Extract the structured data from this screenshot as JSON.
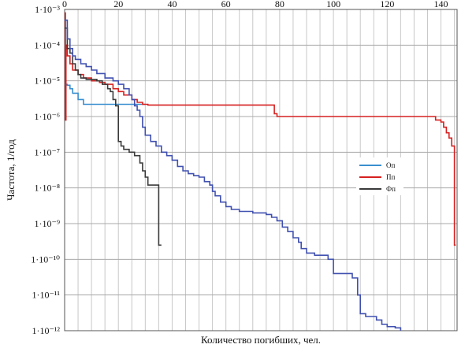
{
  "chart_data": {
    "type": "line",
    "xlabel": "Количество погибших, чел.",
    "ylabel": "Частота, 1/год",
    "xlim": [
      0,
      146
    ],
    "ylim_exp": [
      -12,
      -3
    ],
    "y_scale": "log",
    "x_ticks": [
      0,
      20,
      40,
      60,
      80,
      100,
      120,
      140
    ],
    "y_ticks": [
      "1·10⁻³",
      "1·10⁻⁴",
      "1·10⁻⁵",
      "1·10⁻⁶",
      "1·10⁻⁷",
      "1·10⁻⁸",
      "1·10⁻⁹",
      "1·10⁻¹⁰",
      "1·10⁻¹¹",
      "1·10⁻¹²"
    ],
    "grid": true,
    "legend_position": "right",
    "series": [
      {
        "name": "Оп",
        "color": "#3a8fd0",
        "points": [
          [
            0,
            8e-06
          ],
          [
            1,
            7.5e-06
          ],
          [
            2,
            6e-06
          ],
          [
            3,
            4.5e-06
          ],
          [
            5,
            3e-06
          ],
          [
            7,
            2.2e-06
          ],
          [
            10,
            2.2e-06
          ],
          [
            14,
            2.2e-06
          ],
          [
            18,
            2.2e-06
          ],
          [
            20,
            2.2e-06
          ],
          [
            24,
            2.2e-06
          ],
          [
            28,
            2.2e-06
          ],
          [
            30,
            2.2e-06
          ]
        ]
      },
      {
        "name": "Пп",
        "color": "#d62020",
        "points": [
          [
            0,
            0.0008
          ],
          [
            0.3,
            8e-07
          ],
          [
            0.5,
            0.0001
          ],
          [
            1,
            5e-05
          ],
          [
            2,
            3e-05
          ],
          [
            3,
            2e-05
          ],
          [
            5,
            1.5e-05
          ],
          [
            7,
            1.2e-05
          ],
          [
            10,
            1e-05
          ],
          [
            13,
            9e-06
          ],
          [
            15,
            8e-06
          ],
          [
            18,
            6e-06
          ],
          [
            20,
            5e-06
          ],
          [
            22,
            4e-06
          ],
          [
            25,
            3e-06
          ],
          [
            27,
            2.5e-06
          ],
          [
            29,
            2.2e-06
          ],
          [
            31,
            2.1e-06
          ],
          [
            40,
            2.1e-06
          ],
          [
            60,
            2.1e-06
          ],
          [
            77,
            2.1e-06
          ],
          [
            78,
            1.2e-06
          ],
          [
            79,
            1e-06
          ],
          [
            100,
            1e-06
          ],
          [
            120,
            1e-06
          ],
          [
            137,
            1e-06
          ],
          [
            138,
            8e-07
          ],
          [
            140,
            7e-07
          ],
          [
            141,
            5e-07
          ],
          [
            142,
            3.5e-07
          ],
          [
            143,
            2.5e-07
          ],
          [
            144,
            1.5e-07
          ],
          [
            145,
            2.5e-10
          ],
          [
            145.5,
            2.5e-10
          ]
        ]
      },
      {
        "name": "Фп",
        "color": "#3a3a3a",
        "points": [
          [
            0,
            0.0003
          ],
          [
            1,
            8e-05
          ],
          [
            2,
            6e-05
          ],
          [
            3,
            3e-05
          ],
          [
            4,
            2e-05
          ],
          [
            5,
            1.5e-05
          ],
          [
            6,
            1.2e-05
          ],
          [
            8,
            1.1e-05
          ],
          [
            10,
            1.1e-05
          ],
          [
            12,
            1e-05
          ],
          [
            14,
            8e-06
          ],
          [
            16,
            6e-06
          ],
          [
            17,
            5e-06
          ],
          [
            18,
            3e-06
          ],
          [
            19,
            2e-06
          ],
          [
            20,
            2e-07
          ],
          [
            21,
            1.5e-07
          ],
          [
            22,
            1.2e-07
          ],
          [
            24,
            1e-07
          ],
          [
            26,
            8e-08
          ],
          [
            28,
            5e-08
          ],
          [
            29,
            3e-08
          ],
          [
            30,
            2e-08
          ],
          [
            31,
            1.2e-08
          ],
          [
            34,
            1.2e-08
          ],
          [
            35,
            2.5e-10
          ],
          [
            36,
            2.5e-10
          ]
        ]
      },
      {
        "name": "",
        "color": "#4050b0",
        "points": [
          [
            0,
            0.0005
          ],
          [
            1,
            0.00015
          ],
          [
            2,
            8e-05
          ],
          [
            3,
            5e-05
          ],
          [
            4,
            4e-05
          ],
          [
            6,
            3e-05
          ],
          [
            8,
            2.5e-05
          ],
          [
            10,
            2e-05
          ],
          [
            12,
            1.6e-05
          ],
          [
            15,
            1.2e-05
          ],
          [
            18,
            1e-05
          ],
          [
            20,
            8e-06
          ],
          [
            22,
            6e-06
          ],
          [
            24,
            4e-06
          ],
          [
            25,
            3e-06
          ],
          [
            26,
            2e-06
          ],
          [
            27,
            1.5e-06
          ],
          [
            28,
            1e-06
          ],
          [
            29,
            5e-07
          ],
          [
            30,
            3e-07
          ],
          [
            32,
            2e-07
          ],
          [
            34,
            1.5e-07
          ],
          [
            36,
            1e-07
          ],
          [
            38,
            8e-08
          ],
          [
            40,
            6e-08
          ],
          [
            42,
            4e-08
          ],
          [
            44,
            3e-08
          ],
          [
            46,
            2.5e-08
          ],
          [
            48,
            2.2e-08
          ],
          [
            50,
            2e-08
          ],
          [
            52,
            1.5e-08
          ],
          [
            54,
            1.2e-08
          ],
          [
            55,
            8e-09
          ],
          [
            56,
            6e-09
          ],
          [
            58,
            4e-09
          ],
          [
            60,
            3e-09
          ],
          [
            62,
            2.5e-09
          ],
          [
            65,
            2.2e-09
          ],
          [
            70,
            2e-09
          ],
          [
            75,
            1.8e-09
          ],
          [
            77,
            1.5e-09
          ],
          [
            79,
            1.2e-09
          ],
          [
            81,
            8e-10
          ],
          [
            83,
            6e-10
          ],
          [
            85,
            4e-10
          ],
          [
            87,
            3e-10
          ],
          [
            88,
            2e-10
          ],
          [
            90,
            1.5e-10
          ],
          [
            93,
            1.3e-10
          ],
          [
            96,
            1.3e-10
          ],
          [
            98,
            1e-10
          ],
          [
            100,
            4e-11
          ],
          [
            102,
            4e-11
          ],
          [
            105,
            4e-11
          ],
          [
            107,
            3e-11
          ],
          [
            109,
            1e-11
          ],
          [
            110,
            3e-12
          ],
          [
            112,
            2.5e-12
          ],
          [
            114,
            2.5e-12
          ],
          [
            116,
            2e-12
          ],
          [
            118,
            1.5e-12
          ],
          [
            120,
            1.3e-12
          ],
          [
            123,
            1.2e-12
          ],
          [
            125,
            1e-12
          ]
        ]
      }
    ]
  }
}
